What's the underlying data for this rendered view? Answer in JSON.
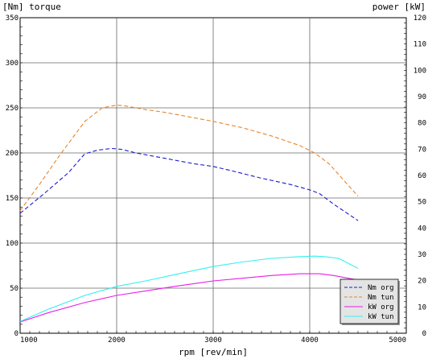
{
  "chart_data": {
    "type": "line",
    "left_axis_label": "[Nm] torque",
    "right_axis_label": "power [kW]",
    "xlabel": "rpm [rev/min]",
    "xlim": [
      1000,
      5000
    ],
    "ylim_left": [
      0,
      350
    ],
    "ylim_right": [
      0,
      120
    ],
    "x_ticks": [
      1000,
      2000,
      3000,
      4000,
      5000
    ],
    "y_ticks_left": [
      0,
      50,
      100,
      150,
      200,
      250,
      300,
      350
    ],
    "y_ticks_right": [
      0,
      10,
      20,
      30,
      40,
      50,
      60,
      70,
      80,
      90,
      100,
      110,
      120
    ],
    "grid": "major",
    "legend_position": "bottom-right",
    "series": [
      {
        "name": "Nm org",
        "axis": "left",
        "color": "#1a1ad2",
        "dash": "dashed",
        "x": [
          1000,
          1250,
          1500,
          1670,
          1800,
          1950,
          2050,
          2200,
          2500,
          2800,
          3000,
          3200,
          3500,
          3800,
          4000,
          4100,
          4250,
          4500
        ],
        "y": [
          133,
          155,
          178,
          199,
          203,
          205,
          204,
          200,
          194,
          188,
          185,
          180,
          172,
          165,
          159,
          155,
          143,
          125
        ]
      },
      {
        "name": "Nm tun",
        "axis": "left",
        "color": "#e8842a",
        "dash": "dashed",
        "x": [
          1000,
          1200,
          1400,
          1670,
          1850,
          2000,
          2100,
          2300,
          2500,
          2800,
          3000,
          3300,
          3600,
          3900,
          4050,
          4200,
          4350,
          4500
        ],
        "y": [
          136,
          165,
          196,
          235,
          250,
          253,
          252,
          248,
          245,
          239,
          235,
          228,
          219,
          208,
          200,
          188,
          170,
          152
        ]
      },
      {
        "name": "kW org",
        "axis": "left",
        "color": "#e81ee8",
        "dash": "solid",
        "x": [
          1000,
          1300,
          1670,
          2000,
          2300,
          2600,
          3000,
          3300,
          3600,
          3900,
          4100,
          4250,
          4500
        ],
        "y": [
          12.5,
          23,
          34,
          42,
          47,
          52,
          58,
          61,
          64,
          66,
          66,
          64,
          59
        ]
      },
      {
        "name": "kW tun",
        "axis": "left",
        "color": "#33f0f0",
        "dash": "solid",
        "x": [
          1000,
          1300,
          1670,
          2000,
          2300,
          2600,
          3000,
          3300,
          3600,
          3900,
          4050,
          4150,
          4300,
          4500
        ],
        "y": [
          13,
          27,
          42,
          52,
          58,
          65,
          74,
          79,
          83,
          85,
          85.5,
          85,
          83,
          72
        ]
      }
    ]
  }
}
